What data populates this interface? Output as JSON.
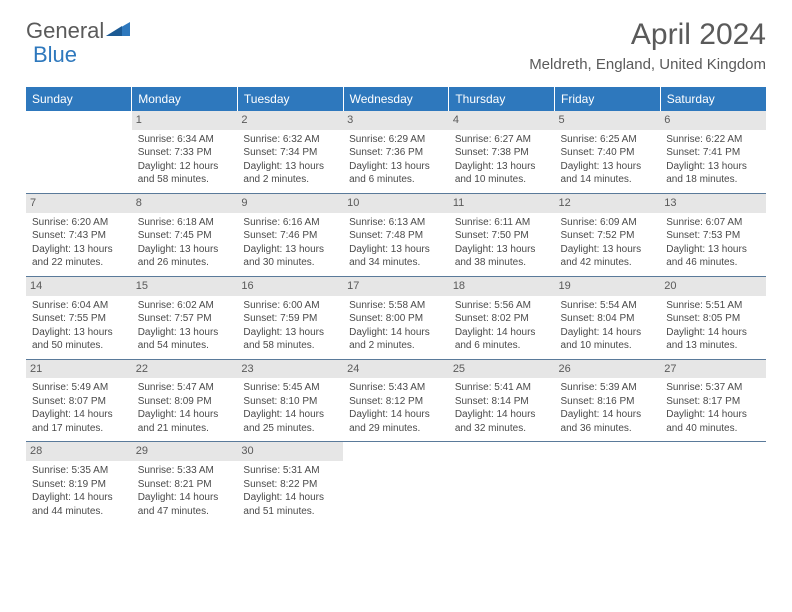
{
  "logo": {
    "word1": "General",
    "word2": "Blue"
  },
  "title": "April 2024",
  "location": "Meldreth, England, United Kingdom",
  "colors": {
    "header_bg": "#2e78bd",
    "header_text": "#ffffff",
    "daynum_bg": "#e6e6e6",
    "text": "#4a4a4a",
    "rule": "#5a7a9a"
  },
  "weekdays": [
    "Sunday",
    "Monday",
    "Tuesday",
    "Wednesday",
    "Thursday",
    "Friday",
    "Saturday"
  ],
  "month": {
    "year": 2024,
    "name": "April",
    "days_in_month": 30,
    "start_weekday": 1
  },
  "days": {
    "1": {
      "sunrise": "6:34 AM",
      "sunset": "7:33 PM",
      "daylight": "12 hours and 58 minutes."
    },
    "2": {
      "sunrise": "6:32 AM",
      "sunset": "7:34 PM",
      "daylight": "13 hours and 2 minutes."
    },
    "3": {
      "sunrise": "6:29 AM",
      "sunset": "7:36 PM",
      "daylight": "13 hours and 6 minutes."
    },
    "4": {
      "sunrise": "6:27 AM",
      "sunset": "7:38 PM",
      "daylight": "13 hours and 10 minutes."
    },
    "5": {
      "sunrise": "6:25 AM",
      "sunset": "7:40 PM",
      "daylight": "13 hours and 14 minutes."
    },
    "6": {
      "sunrise": "6:22 AM",
      "sunset": "7:41 PM",
      "daylight": "13 hours and 18 minutes."
    },
    "7": {
      "sunrise": "6:20 AM",
      "sunset": "7:43 PM",
      "daylight": "13 hours and 22 minutes."
    },
    "8": {
      "sunrise": "6:18 AM",
      "sunset": "7:45 PM",
      "daylight": "13 hours and 26 minutes."
    },
    "9": {
      "sunrise": "6:16 AM",
      "sunset": "7:46 PM",
      "daylight": "13 hours and 30 minutes."
    },
    "10": {
      "sunrise": "6:13 AM",
      "sunset": "7:48 PM",
      "daylight": "13 hours and 34 minutes."
    },
    "11": {
      "sunrise": "6:11 AM",
      "sunset": "7:50 PM",
      "daylight": "13 hours and 38 minutes."
    },
    "12": {
      "sunrise": "6:09 AM",
      "sunset": "7:52 PM",
      "daylight": "13 hours and 42 minutes."
    },
    "13": {
      "sunrise": "6:07 AM",
      "sunset": "7:53 PM",
      "daylight": "13 hours and 46 minutes."
    },
    "14": {
      "sunrise": "6:04 AM",
      "sunset": "7:55 PM",
      "daylight": "13 hours and 50 minutes."
    },
    "15": {
      "sunrise": "6:02 AM",
      "sunset": "7:57 PM",
      "daylight": "13 hours and 54 minutes."
    },
    "16": {
      "sunrise": "6:00 AM",
      "sunset": "7:59 PM",
      "daylight": "13 hours and 58 minutes."
    },
    "17": {
      "sunrise": "5:58 AM",
      "sunset": "8:00 PM",
      "daylight": "14 hours and 2 minutes."
    },
    "18": {
      "sunrise": "5:56 AM",
      "sunset": "8:02 PM",
      "daylight": "14 hours and 6 minutes."
    },
    "19": {
      "sunrise": "5:54 AM",
      "sunset": "8:04 PM",
      "daylight": "14 hours and 10 minutes."
    },
    "20": {
      "sunrise": "5:51 AM",
      "sunset": "8:05 PM",
      "daylight": "14 hours and 13 minutes."
    },
    "21": {
      "sunrise": "5:49 AM",
      "sunset": "8:07 PM",
      "daylight": "14 hours and 17 minutes."
    },
    "22": {
      "sunrise": "5:47 AM",
      "sunset": "8:09 PM",
      "daylight": "14 hours and 21 minutes."
    },
    "23": {
      "sunrise": "5:45 AM",
      "sunset": "8:10 PM",
      "daylight": "14 hours and 25 minutes."
    },
    "24": {
      "sunrise": "5:43 AM",
      "sunset": "8:12 PM",
      "daylight": "14 hours and 29 minutes."
    },
    "25": {
      "sunrise": "5:41 AM",
      "sunset": "8:14 PM",
      "daylight": "14 hours and 32 minutes."
    },
    "26": {
      "sunrise": "5:39 AM",
      "sunset": "8:16 PM",
      "daylight": "14 hours and 36 minutes."
    },
    "27": {
      "sunrise": "5:37 AM",
      "sunset": "8:17 PM",
      "daylight": "14 hours and 40 minutes."
    },
    "28": {
      "sunrise": "5:35 AM",
      "sunset": "8:19 PM",
      "daylight": "14 hours and 44 minutes."
    },
    "29": {
      "sunrise": "5:33 AM",
      "sunset": "8:21 PM",
      "daylight": "14 hours and 47 minutes."
    },
    "30": {
      "sunrise": "5:31 AM",
      "sunset": "8:22 PM",
      "daylight": "14 hours and 51 minutes."
    }
  },
  "labels": {
    "sunrise": "Sunrise:",
    "sunset": "Sunset:",
    "daylight": "Daylight:"
  }
}
